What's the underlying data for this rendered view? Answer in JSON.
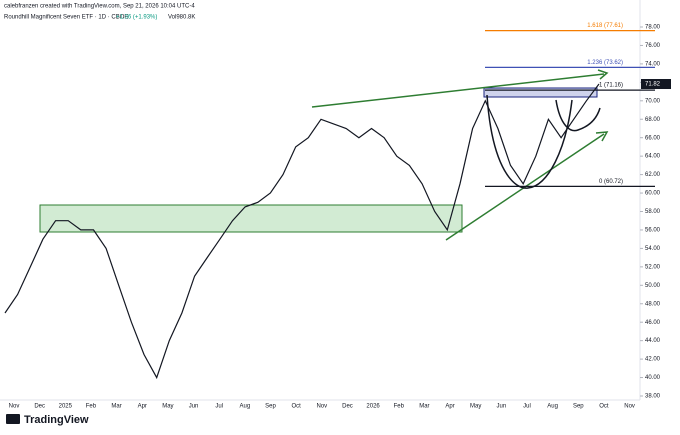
{
  "chart_data": {
    "type": "line",
    "header": "calebfranzen created with TradingView.com, Sep 21, 2026 10:04 UTC-4",
    "title": "Roundhill Magnificent Seven ETF · 1D · CBOE",
    "change": "+1.36 (+1.93%)",
    "volume": "Vol980.8K",
    "brand": "TradingView",
    "x_axis_labels": [
      "Nov",
      "Dec",
      "2025",
      "Feb",
      "Mar",
      "Apr",
      "May",
      "Jun",
      "Jul",
      "Aug",
      "Sep",
      "Oct",
      "Nov",
      "Dec",
      "2026",
      "Feb",
      "Mar",
      "Apr",
      "May",
      "Jun",
      "Jul",
      "Aug",
      "Sep",
      "Oct",
      "Nov"
    ],
    "series": [
      {
        "name": "Roundhill Magnificent Seven ETF",
        "color": "#131722",
        "values": [
          47,
          49,
          52,
          55,
          57,
          57,
          56,
          56,
          54,
          50,
          46,
          42.5,
          40,
          44,
          47,
          51,
          53,
          55,
          57,
          58.5,
          59,
          60,
          62,
          65,
          66,
          68,
          67.5,
          67,
          66,
          67,
          66,
          64,
          63,
          61,
          58,
          56,
          61,
          67,
          70,
          67,
          63,
          61,
          64,
          68,
          66,
          68,
          70,
          71.82
        ]
      }
    ],
    "fib_levels": [
      {
        "value": 77.61,
        "label": "1.618 (77.61)",
        "color": "#f57c00"
      },
      {
        "value": 73.62,
        "label": "1.236 (73.62)",
        "color": "#3f51b5"
      },
      {
        "value": 71.16,
        "label": "1 (71.16)",
        "color": "#131722"
      },
      {
        "value": 60.72,
        "label": "0 (60.72)",
        "color": "#131722"
      }
    ],
    "ylim": [
      38,
      78
    ],
    "yticks": [
      {
        "value": 38,
        "label": "38.00"
      },
      {
        "value": 40,
        "label": "40.00"
      },
      {
        "value": 42,
        "label": "42.00"
      },
      {
        "value": 44,
        "label": "44.00"
      },
      {
        "value": 46,
        "label": "46.00"
      },
      {
        "value": 48,
        "label": "48.00"
      },
      {
        "value": 50,
        "label": "50.00"
      },
      {
        "value": 52,
        "label": "52.00"
      },
      {
        "value": 54,
        "label": "54.00"
      },
      {
        "value": 56,
        "label": "56.00"
      },
      {
        "value": 58,
        "label": "58.00"
      },
      {
        "value": 60,
        "label": "60.00"
      },
      {
        "value": 62,
        "label": "62.00"
      },
      {
        "value": 64,
        "label": "64.00"
      },
      {
        "value": 66,
        "label": "66.00"
      },
      {
        "value": 68,
        "label": "68.00"
      },
      {
        "value": 70,
        "label": "70.00"
      },
      {
        "value": 72,
        "label": "72.00"
      },
      {
        "value": 74,
        "label": "74.00"
      },
      {
        "value": 76,
        "label": "76.00"
      },
      {
        "value": 78,
        "label": "78.00"
      }
    ],
    "grid": false
  }
}
